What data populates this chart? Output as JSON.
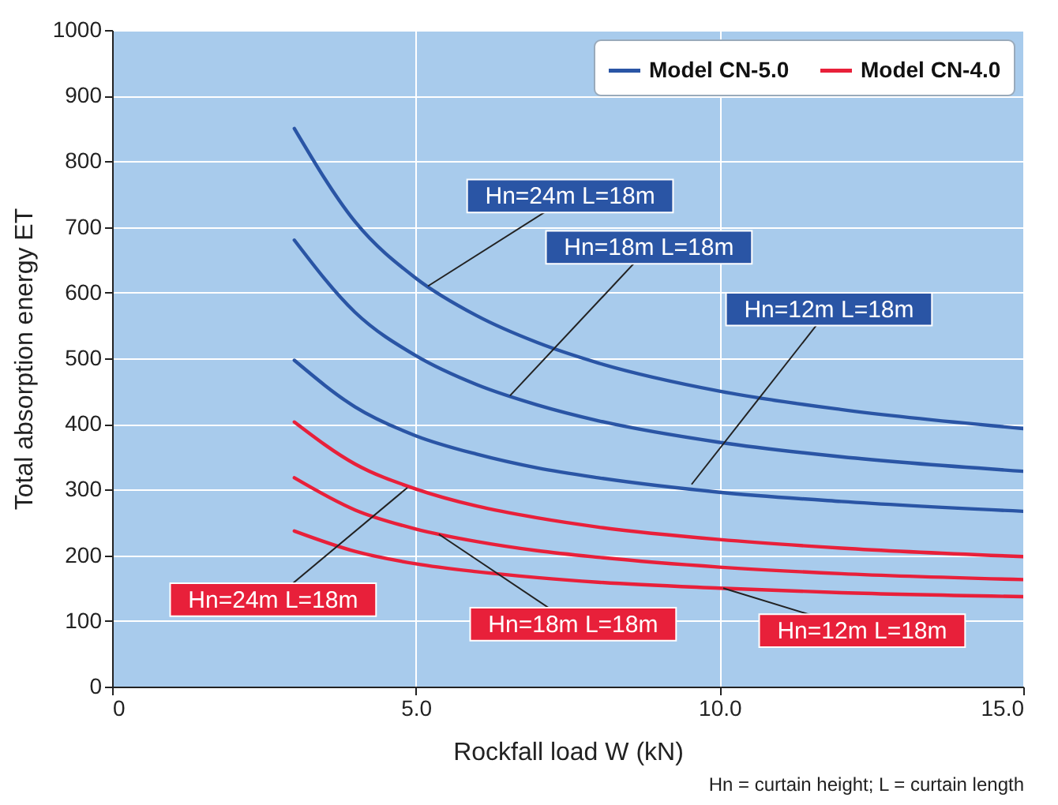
{
  "chart_data": {
    "type": "line",
    "xlabel": "Rockfall load W (kN)",
    "ylabel": "Total absorption energy ET",
    "x": [
      3,
      4,
      5,
      6,
      7,
      8,
      10,
      12,
      15
    ],
    "series": [
      {
        "name": "Model CN-5.0",
        "color": "#2a55a5",
        "values": [
          850,
          708,
          622,
          565,
          524,
          493,
          450,
          422,
          393
        ]
      },
      {
        "color": "#2a55a5",
        "values": [
          680,
          570,
          504,
          460,
          429,
          405,
          372,
          350,
          328
        ]
      },
      {
        "color": "#2a55a5",
        "values": [
          497,
          426,
          382,
          354,
          333,
          318,
          296,
          282,
          267
        ]
      },
      {
        "name": "Model CN-4.0",
        "color": "#e8203a",
        "values": [
          403,
          339,
          301,
          275,
          257,
          243,
          224,
          211,
          198
        ]
      },
      {
        "color": "#e8203a",
        "values": [
          318,
          269,
          240,
          221,
          207,
          197,
          182,
          172,
          163
        ]
      },
      {
        "color": "#e8203a",
        "values": [
          237,
          206,
          187,
          175,
          166,
          159,
          150,
          143,
          137
        ]
      }
    ],
    "xlim": [
      0,
      15
    ],
    "xticks": [
      0,
      {
        "value": 5,
        "label": "5.0"
      },
      {
        "value": 10,
        "label": "10.0"
      },
      {
        "value": 15,
        "label": "15.0"
      }
    ],
    "ylim": [
      0,
      1000
    ],
    "yticks": [
      0,
      100,
      200,
      300,
      400,
      500,
      600,
      700,
      800,
      900,
      1000
    ],
    "grid": true,
    "legend": "top right",
    "annotations": [
      {
        "text": "Hn=24m L=18m",
        "x": 5.2,
        "y": 610
      },
      {
        "text": "Hn=18m L=18m",
        "x": 6.55,
        "y": 443
      },
      {
        "text": "Hn=12m L=18m",
        "x": 9.54,
        "y": 308
      },
      {
        "text": "Hn=24m L=18m",
        "x": 4.86,
        "y": 303
      },
      {
        "text": "Hn=18m L=18m",
        "x": 5.38,
        "y": 232
      },
      {
        "text": "Hn=12m L=18m",
        "x": 10.06,
        "y": 150
      },
      "Hn = curtain height; L = curtain length"
    ]
  }
}
